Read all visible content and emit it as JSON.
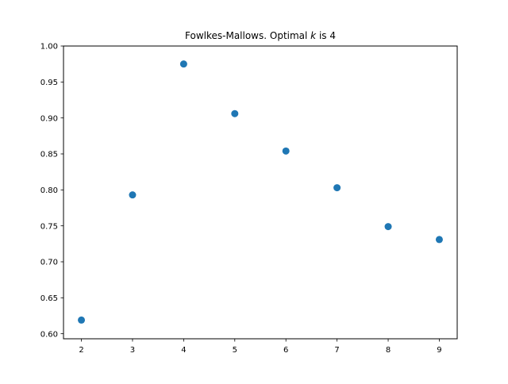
{
  "chart_data": {
    "type": "scatter",
    "title_prefix": "Fowlkes-Mallows. Optimal ",
    "title_var": "k",
    "title_suffix": " is 4",
    "xlabel": "",
    "ylabel": "",
    "x": [
      2,
      3,
      4,
      5,
      6,
      7,
      8,
      9
    ],
    "y": [
      0.619,
      0.793,
      0.975,
      0.906,
      0.854,
      0.803,
      0.749,
      0.731
    ],
    "xlim": [
      1.65,
      9.35
    ],
    "ylim": [
      0.593,
      1.0
    ],
    "xticks": [
      "2",
      "3",
      "4",
      "5",
      "6",
      "7",
      "8",
      "9"
    ],
    "yticks": [
      "0.60",
      "0.65",
      "0.70",
      "0.75",
      "0.80",
      "0.85",
      "0.90",
      "0.95",
      "1.00"
    ],
    "marker_color": "#1f77b4",
    "grid": false,
    "legend": "none"
  }
}
